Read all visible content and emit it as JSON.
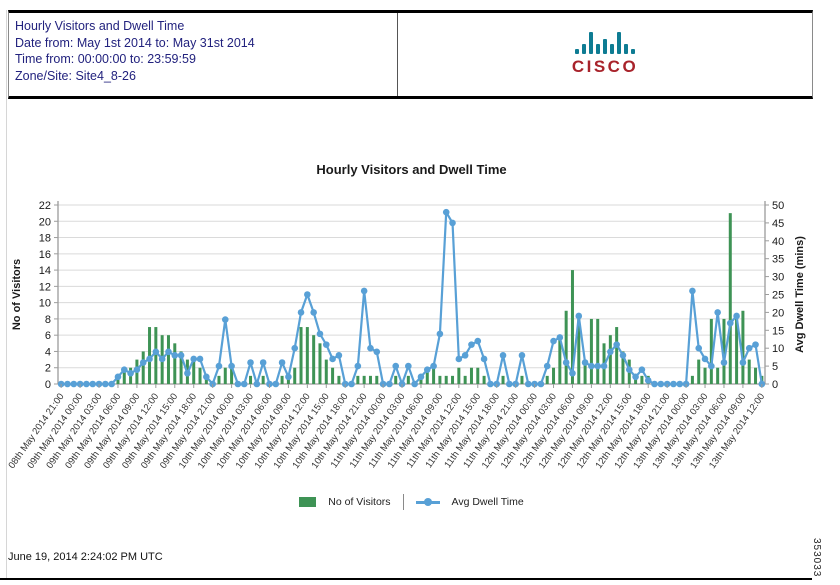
{
  "header": {
    "title": "Hourly Visitors and Dwell Time",
    "date_line": "Date from: May 1st 2014 to: May 31st 2014",
    "time_line": "Time from: 00:00:00 to: 23:59:59",
    "zone_line": "Zone/Site: Site4_8-26",
    "brand": "CISCO",
    "text_color": "#22227E",
    "logo_teal": "#0E7C93",
    "logo_red": "#A8232B"
  },
  "chart_data": {
    "type": "bar",
    "title": "Hourly Visitors and Dwell Time",
    "ylabel_left": "No of Visitors",
    "ylabel_right": "Avg Dwell Time (mins)",
    "ylim_left": [
      0,
      22
    ],
    "ytick_step_left": 2,
    "ylim_right": [
      0,
      50
    ],
    "ytick_step_right": 5,
    "grid": true,
    "legend_position": "bottom",
    "x_label_every": 3,
    "x_labels": [
      "08th May 2014 21:00",
      "09th May 2014 00:00",
      "09th May 2014 03:00",
      "09th May 2014 06:00",
      "09th May 2014 09:00",
      "09th May 2014 12:00",
      "09th May 2014 15:00",
      "09th May 2014 18:00",
      "09th May 2014 21:00",
      "10th May 2014 00:00",
      "10th May 2014 03:00",
      "10th May 2014 06:00",
      "10th May 2014 09:00",
      "10th May 2014 12:00",
      "10th May 2014 15:00",
      "10th May 2014 18:00",
      "10th May 2014 21:00",
      "11th May 2014 00:00",
      "11th May 2014 03:00",
      "11th May 2014 06:00",
      "11th May 2014 09:00",
      "11th May 2014 12:00",
      "11th May 2014 15:00",
      "11th May 2014 18:00",
      "11th May 2014 21:00",
      "12th May 2014 00:00",
      "12th May 2014 03:00",
      "12th May 2014 06:00",
      "12th May 2014 09:00",
      "12th May 2014 12:00",
      "12th May 2014 15:00",
      "12th May 2014 18:00",
      "12th May 2014 21:00",
      "13th May 2014 00:00",
      "13th May 2014 03:00",
      "13th May 2014 06:00",
      "13th May 2014 09:00",
      "13th May 2014 12:00"
    ],
    "series": [
      {
        "name": "No of Visitors",
        "type": "bar",
        "axis": "left",
        "color": "#3E9355",
        "values": [
          0,
          0,
          0,
          0,
          0,
          0,
          0,
          0,
          0,
          1,
          2,
          2,
          3,
          4,
          7,
          7,
          6,
          6,
          5,
          4,
          3,
          3,
          2,
          1,
          0,
          1,
          2,
          2,
          0,
          0,
          1,
          0,
          1,
          0,
          0,
          1,
          1,
          2,
          7,
          7,
          6,
          5,
          3,
          2,
          1,
          0,
          0,
          1,
          1,
          1,
          1,
          0,
          0,
          1,
          0,
          1,
          0,
          1,
          2,
          2,
          1,
          1,
          1,
          2,
          1,
          2,
          2,
          1,
          0,
          0,
          1,
          0,
          0,
          1,
          0,
          0,
          0,
          1,
          2,
          6,
          9,
          14,
          8,
          3,
          8,
          8,
          5,
          6,
          7,
          4,
          3,
          1,
          1,
          1,
          0,
          0,
          0,
          0,
          0,
          0,
          1,
          3,
          2,
          8,
          2,
          8,
          21,
          8,
          9,
          3,
          2,
          1
        ]
      },
      {
        "name": "Avg Dwell Time",
        "type": "line",
        "axis": "right",
        "color": "#58A0D6",
        "values": [
          0,
          0,
          0,
          0,
          0,
          0,
          0,
          0,
          0,
          2,
          4,
          3,
          4,
          6,
          7,
          9,
          7,
          9,
          8,
          8,
          3,
          7,
          7,
          2,
          0,
          5,
          18,
          5,
          0,
          0,
          6,
          0,
          6,
          0,
          0,
          6,
          2,
          10,
          20,
          25,
          20,
          14,
          11,
          7,
          8,
          0,
          0,
          5,
          26,
          10,
          9,
          0,
          0,
          5,
          0,
          5,
          0,
          2,
          4,
          5,
          14,
          48,
          45,
          7,
          8,
          11,
          12,
          7,
          0,
          0,
          8,
          0,
          0,
          8,
          0,
          0,
          0,
          5,
          12,
          13,
          6,
          3,
          19,
          6,
          5,
          5,
          5,
          9,
          11,
          8,
          4,
          2,
          4,
          1,
          0,
          0,
          0,
          0,
          0,
          0,
          26,
          10,
          7,
          5,
          20,
          6,
          17,
          19,
          6,
          10,
          11,
          0
        ]
      }
    ],
    "colors": {
      "grid": "#DADADA",
      "axis": "#9C9C9C",
      "tick_text": "#1a1a1a",
      "x_label_text": "#333333"
    }
  },
  "legend": {
    "visitors_label": "No of Visitors",
    "dwell_label": "Avg Dwell Time"
  },
  "footer": {
    "timestamp": "June 19, 2014 2:24:02 PM UTC",
    "doc_number": "353033"
  }
}
